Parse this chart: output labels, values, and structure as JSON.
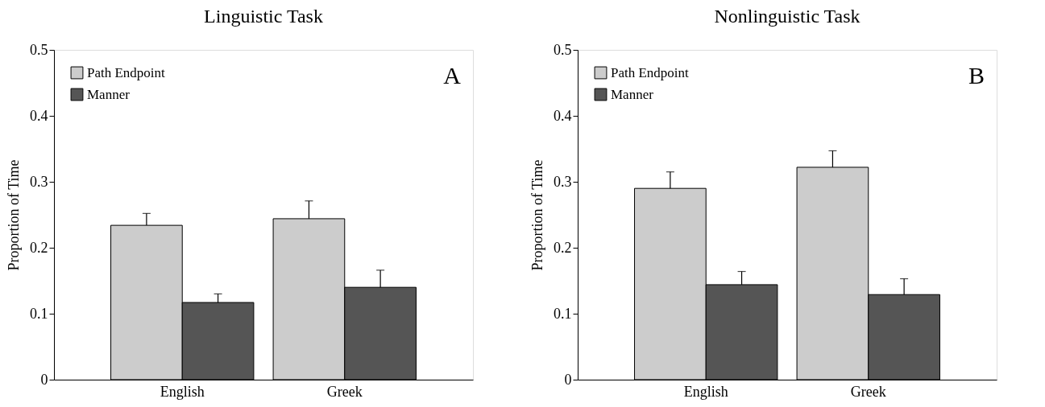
{
  "chart_data": [
    {
      "type": "bar",
      "title": "Linguistic Task",
      "ylabel": "Proportion of Time",
      "categories": [
        "English",
        "Greek"
      ],
      "ylim": [
        0,
        0.5
      ],
      "yticks": [
        0,
        0.1,
        0.2,
        0.3,
        0.4,
        0.5
      ],
      "grid": false,
      "legend": "top left",
      "annotations": [
        "A"
      ],
      "series": [
        {
          "name": "Path Endpoint",
          "color": "#cccccc",
          "values": [
            0.234,
            0.244
          ],
          "errors": [
            [
              0.234,
              0.252
            ],
            [
              0.244,
              0.271
            ]
          ]
        },
        {
          "name": "Manner",
          "color": "#555555",
          "values": [
            0.117,
            0.14
          ],
          "errors": [
            [
              0.117,
              0.13
            ],
            [
              0.14,
              0.166
            ]
          ]
        }
      ]
    },
    {
      "type": "bar",
      "title": "Nonlinguistic Task",
      "ylabel": "Proportion of Time",
      "categories": [
        "English",
        "Greek"
      ],
      "ylim": [
        0,
        0.5
      ],
      "yticks": [
        0,
        0.1,
        0.2,
        0.3,
        0.4,
        0.5
      ],
      "grid": false,
      "legend": "top left",
      "annotations": [
        "B"
      ],
      "series": [
        {
          "name": "Path Endpoint",
          "color": "#cccccc",
          "values": [
            0.29,
            0.322
          ],
          "errors": [
            [
              0.29,
              0.315
            ],
            [
              0.322,
              0.347
            ]
          ]
        },
        {
          "name": "Manner",
          "color": "#555555",
          "values": [
            0.144,
            0.129
          ],
          "errors": [
            [
              0.144,
              0.164
            ],
            [
              0.129,
              0.153
            ]
          ]
        }
      ]
    }
  ]
}
